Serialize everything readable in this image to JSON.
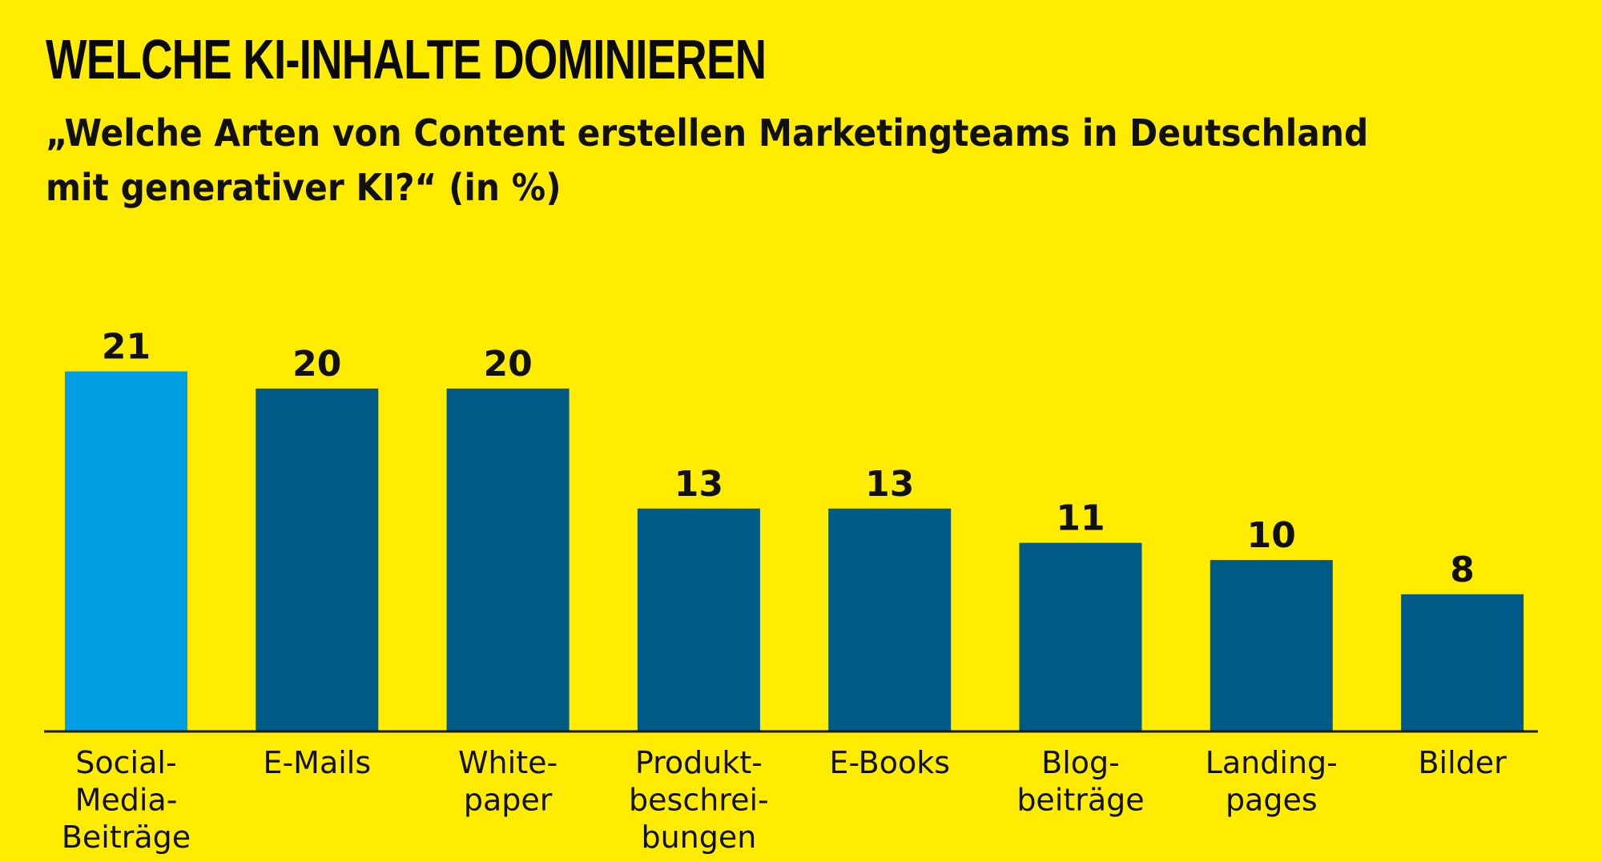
{
  "header": {
    "title": "WELCHE KI-INHALTE DOMINIEREN",
    "subtitle_line1": "„Welche Arten von Content erstellen Marketingteams in Deutschland",
    "subtitle_line2": "mit generativer KI?“ (in %)"
  },
  "colors": {
    "background": "#FFEC00",
    "highlight_bar": "#009FE3",
    "bar": "#005A87",
    "axis": "#1a1a1a"
  },
  "chart_data": {
    "type": "bar",
    "title": "WELCHE KI-INHALTE DOMINIEREN",
    "subtitle": "„Welche Arten von Content erstellen Marketingteams in Deutschland mit generativer KI?“ (in %)",
    "xlabel": "",
    "ylabel": "",
    "unit": "%",
    "ylim": [
      0,
      21
    ],
    "grid": false,
    "legend": "none",
    "categories": [
      [
        "Social-",
        "Media-",
        "Beiträge"
      ],
      [
        "E-Mails"
      ],
      [
        "White-",
        "paper"
      ],
      [
        "Produkt-",
        "beschrei-",
        "bungen"
      ],
      [
        "E-Books"
      ],
      [
        "Blog-",
        "beiträge"
      ],
      [
        "Landing-",
        "pages"
      ],
      [
        "Bilder"
      ]
    ],
    "values": [
      21,
      20,
      20,
      13,
      13,
      11,
      10,
      8
    ],
    "data_labels": [
      "21",
      "20",
      "20",
      "13",
      "13",
      "11",
      "10",
      "8"
    ],
    "highlighted_index": 0
  }
}
